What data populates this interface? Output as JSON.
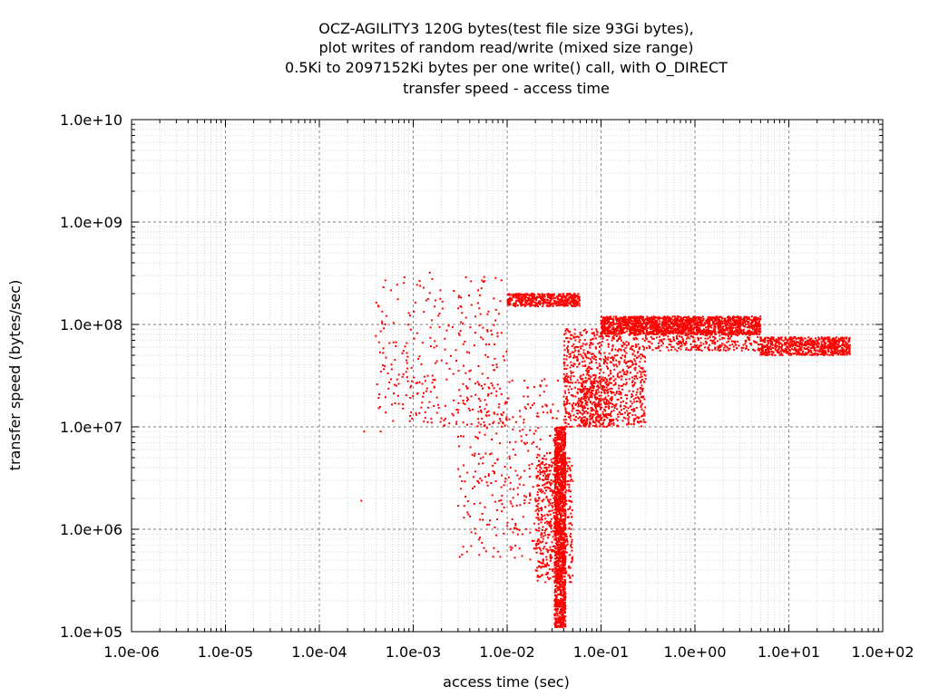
{
  "chart_data": {
    "type": "scatter",
    "title_lines": [
      "OCZ-AGILITY3 120G bytes(test file size 93Gi bytes),",
      "plot writes of random read/write (mixed size range)",
      "0.5Ki to 2097152Ki bytes per one write() call, with O_DIRECT",
      "transfer speed - access time"
    ],
    "xlabel": "access time (sec)",
    "ylabel": "transfer speed (bytes/sec)",
    "x_scale": "log",
    "y_scale": "log",
    "xlim": [
      1e-06,
      100
    ],
    "ylim": [
      100000,
      10000000000
    ],
    "x_ticks": [
      {
        "value": 1e-06,
        "label": "1.0e-06"
      },
      {
        "value": 1e-05,
        "label": "1.0e-05"
      },
      {
        "value": 0.0001,
        "label": "1.0e-04"
      },
      {
        "value": 0.001,
        "label": "1.0e-03"
      },
      {
        "value": 0.01,
        "label": "1.0e-02"
      },
      {
        "value": 0.1,
        "label": "1.0e-01"
      },
      {
        "value": 1,
        "label": "1.0e+00"
      },
      {
        "value": 10,
        "label": "1.0e+01"
      },
      {
        "value": 100,
        "label": "1.0e+02"
      }
    ],
    "y_ticks": [
      {
        "value": 100000,
        "label": "1.0e+05"
      },
      {
        "value": 1000000,
        "label": "1.0e+06"
      },
      {
        "value": 10000000,
        "label": "1.0e+07"
      },
      {
        "value": 100000000,
        "label": "1.0e+08"
      },
      {
        "value": 1000000000,
        "label": "1.0e+09"
      },
      {
        "value": 10000000000,
        "label": "1.0e+10"
      }
    ],
    "grid": true,
    "minor_grid": true,
    "legend": "none",
    "marker_color": "#ff0000",
    "point_clusters": [
      {
        "name": "vertical-stem",
        "count": 1400,
        "x_range": [
          0.032,
          0.042
        ],
        "y_range": [
          110000,
          10000000
        ]
      },
      {
        "name": "vertical-stem-wide",
        "count": 500,
        "x_range": [
          0.02,
          0.05
        ],
        "y_range": [
          300000,
          5000000
        ]
      },
      {
        "name": "rising-branch",
        "count": 900,
        "x_range": [
          0.04,
          0.3
        ],
        "y_range": [
          10000000,
          90000000
        ]
      },
      {
        "name": "top-band-left",
        "count": 450,
        "x_range": [
          0.01,
          0.06
        ],
        "y_range": [
          150000000,
          200000000
        ]
      },
      {
        "name": "scattered-upper-left",
        "count": 300,
        "x_range": [
          0.0004,
          0.01
        ],
        "y_range": [
          10000000,
          300000000
        ]
      },
      {
        "name": "scattered-low-mid",
        "count": 350,
        "x_range": [
          0.003,
          0.035
        ],
        "y_range": [
          500000,
          30000000
        ]
      },
      {
        "name": "secondary-branch",
        "count": 250,
        "x_range": [
          0.06,
          0.13
        ],
        "y_range": [
          10000000,
          30000000
        ]
      },
      {
        "name": "plateau",
        "count": 1600,
        "x_range": [
          0.1,
          5
        ],
        "y_range": [
          80000000,
          120000000
        ]
      },
      {
        "name": "plateau-lower-scatter",
        "count": 300,
        "x_range": [
          0.3,
          5
        ],
        "y_range": [
          55000000,
          85000000
        ]
      },
      {
        "name": "right-tail",
        "count": 700,
        "x_range": [
          5,
          45
        ],
        "y_range": [
          50000000,
          75000000
        ]
      }
    ],
    "outliers": [
      {
        "x": 0.00028,
        "y": 1900000
      },
      {
        "x": 0.0003,
        "y": 9000000
      },
      {
        "x": 0.00045,
        "y": 9000000
      },
      {
        "x": 0.0015,
        "y": 320000000
      },
      {
        "x": 0.0011,
        "y": 21000000
      },
      {
        "x": 0.0022,
        "y": 16000000
      },
      {
        "x": 0.003,
        "y": 8000000
      },
      {
        "x": 0.0043,
        "y": 2500000
      }
    ]
  }
}
